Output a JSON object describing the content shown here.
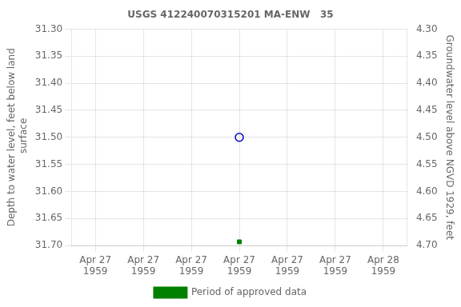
{
  "chart_data": {
    "type": "scatter",
    "title": "USGS 412240070315201 MA-ENW   35",
    "y_label": "Depth to water level, feet below land\n surface",
    "y2_label": "Groundwater level above NGVD 1929, feet",
    "categories": [
      "Apr 27\n1959",
      "Apr 27\n1959",
      "Apr 27\n1959",
      "Apr 27\n1959",
      "Apr 27\n1959",
      "Apr 27\n1959",
      "Apr 28\n1959"
    ],
    "series": [
      {
        "color": "#0000cc",
        "marker": "circle",
        "values": [
          null,
          null,
          null,
          31.5,
          null,
          null,
          null
        ]
      },
      {
        "name": "Period of approved data",
        "color": "#008000",
        "marker": "square",
        "values": [
          null,
          null,
          null,
          31.693,
          null,
          null,
          null
        ]
      }
    ],
    "ylim": [
      31.7,
      31.3
    ],
    "yticks": [
      {
        "value": 31.3,
        "label": "31.30"
      },
      31.35,
      {
        "value": 31.4,
        "label": "31.40"
      },
      31.45,
      {
        "value": 31.5,
        "label": "31.50"
      },
      31.55,
      {
        "value": 31.6,
        "label": "31.60"
      },
      31.65,
      {
        "value": 31.7,
        "label": "31.70"
      }
    ],
    "y2lim": [
      4.7,
      4.3
    ],
    "y2ticks": [
      {
        "value": 4.7,
        "label": "4.70"
      },
      4.65,
      {
        "value": 4.6,
        "label": "4.60"
      },
      4.55,
      {
        "value": 4.5,
        "label": "4.50"
      },
      4.45,
      {
        "value": 4.4,
        "label": "4.40"
      },
      4.35,
      {
        "value": 4.3,
        "label": "4.30"
      }
    ],
    "grid": true,
    "legend": "bottom"
  }
}
